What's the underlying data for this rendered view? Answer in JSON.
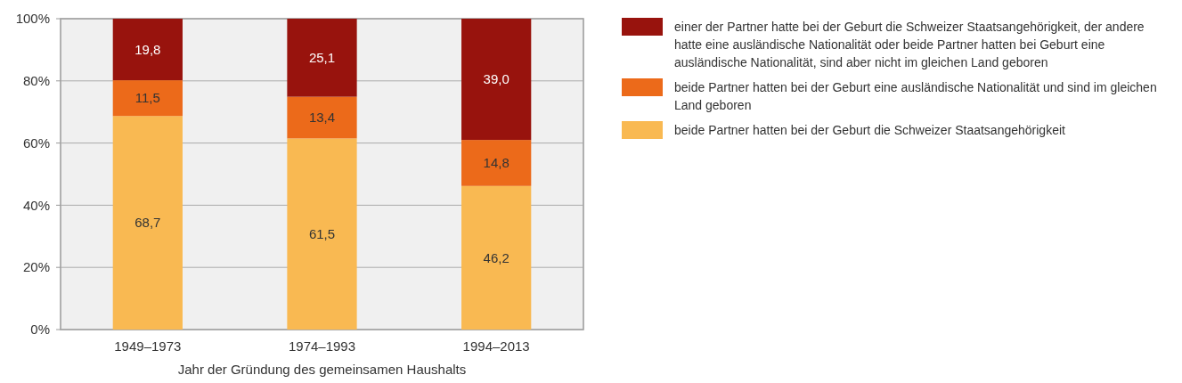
{
  "chart_data": {
    "type": "bar",
    "stacked": true,
    "categories": [
      "1949–1973",
      "1974–1993",
      "1994–2013"
    ],
    "xlabel": "Jahr der Gründung des gemeinsamen Haushalts",
    "ylim": [
      0,
      100
    ],
    "yticks": [
      {
        "value": 0,
        "label": "0%"
      },
      {
        "value": 20,
        "label": "20%"
      },
      {
        "value": 40,
        "label": "40%"
      },
      {
        "value": 60,
        "label": "60%"
      },
      {
        "value": 80,
        "label": "80%"
      },
      {
        "value": 100,
        "label": "100%"
      }
    ],
    "grid": "y",
    "legend": "right",
    "series": [
      {
        "name": "beide Partner hatten bei der Geburt die Schweizer Staatsangehörigkeit",
        "color": "#f9b952",
        "values": [
          68.7,
          61.5,
          46.2
        ],
        "value_labels": [
          "68,7",
          "61,5",
          "46,2"
        ]
      },
      {
        "name": "beide Partner hatten bei der Geburt eine ausländische Nationalität und sind im gleichen Land geboren",
        "color": "#ec6a1a",
        "values": [
          11.5,
          13.4,
          14.8
        ],
        "value_labels": [
          "11,5",
          "13,4",
          "14,8"
        ]
      },
      {
        "name": "einer der Partner hatte bei der Geburt die Schweizer Staatsangehörigkeit, der andere hatte eine ausländische Nationalität oder beide Partner hatten bei Geburt eine ausländische Nationalität, sind aber nicht im gleichen Land geboren",
        "color": "#98130d",
        "values": [
          19.8,
          25.1,
          39.0
        ],
        "value_labels": [
          "19,8",
          "25,1",
          "39,0"
        ]
      }
    ]
  }
}
